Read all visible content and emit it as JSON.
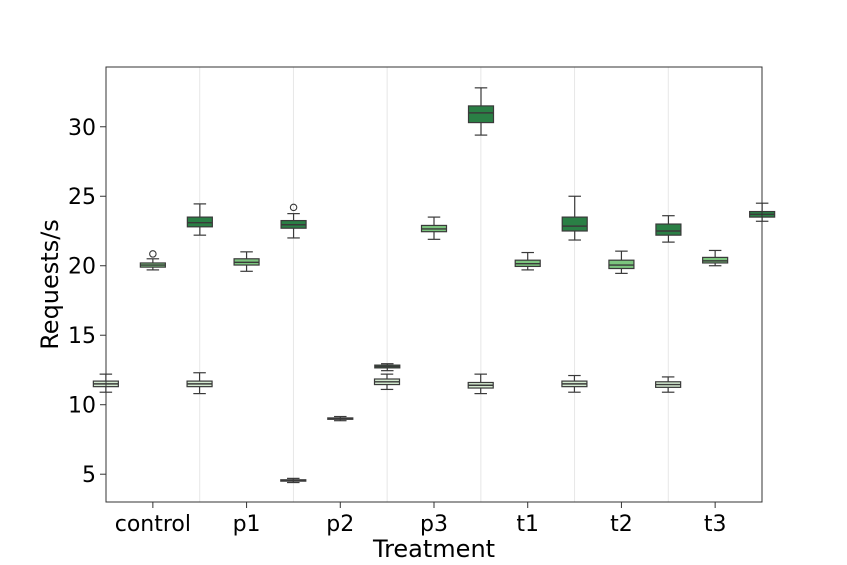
{
  "chart_data": {
    "type": "box",
    "title": "",
    "xlabel": "Treatment",
    "ylabel": "Requests/s",
    "ylim": [
      3,
      34.3
    ],
    "yticks": [
      5,
      10,
      15,
      20,
      25,
      30
    ],
    "ytick_labels": [
      "5",
      "10",
      "15",
      "20",
      "25",
      "30"
    ],
    "categories": [
      "control",
      "p1",
      "p2",
      "p3",
      "t1",
      "t2",
      "t3"
    ],
    "colors": {
      "series_1": "#d4ead0",
      "series_2": "#7cc57e",
      "series_3": "#2a7f45",
      "box_edge": "#3a3a3a",
      "separator": "#e6e6e6",
      "axis": "#333333"
    },
    "series": [
      {
        "name": "series_1",
        "boxes": [
          {
            "category": "control",
            "whislo": 10.9,
            "q1": 11.3,
            "med": 11.5,
            "q3": 11.7,
            "whishi": 12.2,
            "fliers": []
          },
          {
            "category": "p1",
            "whislo": 10.8,
            "q1": 11.3,
            "med": 11.5,
            "q3": 11.7,
            "whishi": 12.3,
            "fliers": []
          },
          {
            "category": "p2",
            "whislo": 4.4,
            "q1": 4.5,
            "med": 4.55,
            "q3": 4.6,
            "whishi": 4.7,
            "fliers": []
          },
          {
            "category": "p3",
            "whislo": 11.1,
            "q1": 11.45,
            "med": 11.65,
            "q3": 11.85,
            "whishi": 12.2,
            "fliers": []
          },
          {
            "category": "t1",
            "whislo": 10.8,
            "q1": 11.2,
            "med": 11.4,
            "q3": 11.6,
            "whishi": 12.2,
            "fliers": []
          },
          {
            "category": "t2",
            "whislo": 10.9,
            "q1": 11.3,
            "med": 11.5,
            "q3": 11.7,
            "whishi": 12.1,
            "fliers": []
          },
          {
            "category": "t3",
            "whislo": 10.9,
            "q1": 11.25,
            "med": 11.45,
            "q3": 11.65,
            "whishi": 12.0,
            "fliers": []
          }
        ]
      },
      {
        "name": "series_2",
        "boxes": [
          {
            "category": "control",
            "whislo": 19.7,
            "q1": 19.9,
            "med": 20.05,
            "q3": 20.2,
            "whishi": 20.5,
            "fliers": [
              20.85
            ]
          },
          {
            "category": "p1",
            "whislo": 19.6,
            "q1": 20.05,
            "med": 20.25,
            "q3": 20.5,
            "whishi": 21.0,
            "fliers": []
          },
          {
            "category": "p2",
            "whislo": 8.85,
            "q1": 8.95,
            "med": 9.0,
            "q3": 9.05,
            "whishi": 9.15,
            "fliers": []
          },
          {
            "category": "p3",
            "whislo": 21.9,
            "q1": 22.45,
            "med": 22.65,
            "q3": 22.9,
            "whishi": 23.5,
            "fliers": []
          },
          {
            "category": "t1",
            "whislo": 19.7,
            "q1": 19.95,
            "med": 20.15,
            "q3": 20.4,
            "whishi": 20.95,
            "fliers": []
          },
          {
            "category": "t2",
            "whislo": 19.45,
            "q1": 19.8,
            "med": 20.05,
            "q3": 20.4,
            "whishi": 21.05,
            "fliers": []
          },
          {
            "category": "t3",
            "whislo": 20.0,
            "q1": 20.2,
            "med": 20.35,
            "q3": 20.6,
            "whishi": 21.1,
            "fliers": []
          }
        ]
      },
      {
        "name": "series_3",
        "boxes": [
          {
            "category": "control",
            "whislo": 22.2,
            "q1": 22.8,
            "med": 23.1,
            "q3": 23.5,
            "whishi": 24.45,
            "fliers": []
          },
          {
            "category": "p1",
            "whislo": 22.0,
            "q1": 22.7,
            "med": 22.95,
            "q3": 23.25,
            "whishi": 23.75,
            "fliers": [
              24.2
            ]
          },
          {
            "category": "p2",
            "whislo": 12.45,
            "q1": 12.65,
            "med": 12.75,
            "q3": 12.85,
            "whishi": 12.95,
            "fliers": []
          },
          {
            "category": "p3",
            "whislo": 29.4,
            "q1": 30.3,
            "med": 31.0,
            "q3": 31.5,
            "whishi": 32.8,
            "fliers": []
          },
          {
            "category": "t1",
            "whislo": 21.85,
            "q1": 22.5,
            "med": 22.85,
            "q3": 23.5,
            "whishi": 25.0,
            "fliers": []
          },
          {
            "category": "t2",
            "whislo": 21.7,
            "q1": 22.2,
            "med": 22.5,
            "q3": 23.0,
            "whishi": 23.6,
            "fliers": []
          },
          {
            "category": "t3",
            "whislo": 23.2,
            "q1": 23.5,
            "med": 23.7,
            "q3": 23.9,
            "whishi": 24.5,
            "fliers": []
          }
        ]
      }
    ],
    "grid": false,
    "legend": "none"
  }
}
